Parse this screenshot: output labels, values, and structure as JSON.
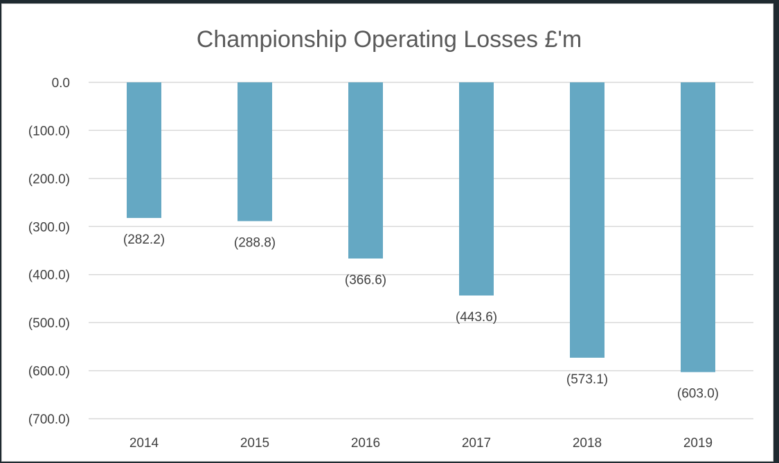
{
  "chart_data": {
    "type": "bar",
    "title": "Championship Operating Losses £'m",
    "xlabel": "",
    "ylabel": "",
    "categories": [
      "2014",
      "2015",
      "2016",
      "2017",
      "2018",
      "2019"
    ],
    "values": [
      -282.2,
      -288.8,
      -366.6,
      -443.6,
      -573.1,
      -603.0
    ],
    "data_labels": [
      "(282.2)",
      "(288.8)",
      "(366.6)",
      "(443.6)",
      "(573.1)",
      "(603.0)"
    ],
    "ylim": [
      -700,
      0
    ],
    "y_ticks": [
      0,
      -100,
      -200,
      -300,
      -400,
      -500,
      -600,
      -700
    ],
    "y_tick_labels": [
      "0.0",
      "(100.0)",
      "(200.0)",
      "(300.0)",
      "(400.0)",
      "(500.0)",
      "(600.0)",
      "(700.0)"
    ],
    "grid": true,
    "legend": "none",
    "bar_color": "#65a8c3",
    "grid_color": "#d9d9d9"
  }
}
